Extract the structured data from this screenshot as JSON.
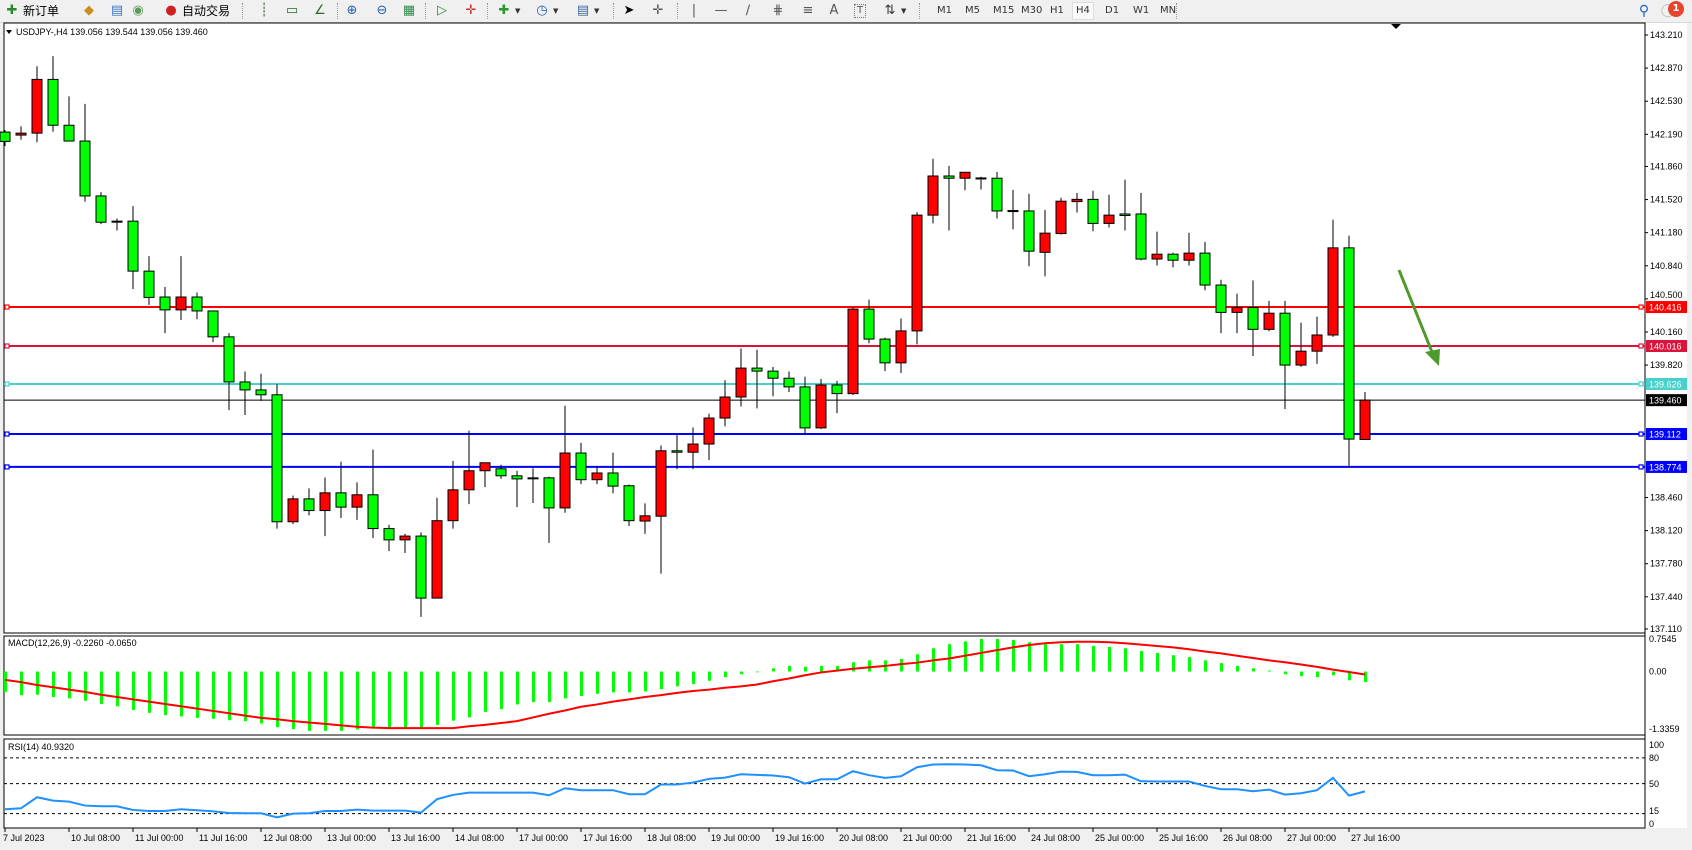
{
  "toolbar": {
    "new_order_label": "新订单",
    "auto_trading_label": "自动交易",
    "timeframes": [
      "M1",
      "M5",
      "M15",
      "M30",
      "H1",
      "H4",
      "D1",
      "W1",
      "MN"
    ],
    "active_timeframe": "H4",
    "notification_count": "1"
  },
  "chart": {
    "title": "USDJPY-,H4  139.056 139.544 139.056 139.460",
    "macd_label": "MACD(12,26,9) -0.2260 -0.0650",
    "rsi_label": "RSI(14) 40.9320",
    "colors": {
      "up_body": "#ff0000",
      "down_body": "#00ff00",
      "macd_hist": "#00ff00",
      "macd_signal": "#ff0000",
      "rsi_line": "#1e90ff",
      "arrow": "#4e9a2e"
    }
  },
  "chart_data": [
    {
      "type": "candlestick",
      "symbol": "USDJPY-",
      "timeframe": "H4",
      "ylim": [
        137.11,
        143.21
      ],
      "y_tick_labels": [
        "143.210",
        "142.870",
        "142.530",
        "142.190",
        "141.860",
        "141.520",
        "141.180",
        "140.840",
        "140.500",
        "140.160",
        "139.820",
        "138.460",
        "138.120",
        "137.780",
        "137.440",
        "137.110"
      ],
      "x_tick_labels": [
        "7 Jul 2023",
        "10 Jul 08:00",
        "11 Jul 00:00",
        "11 Jul 16:00",
        "12 Jul 08:00",
        "13 Jul 00:00",
        "13 Jul 16:00",
        "14 Jul 08:00",
        "17 Jul 00:00",
        "17 Jul 16:00",
        "18 Jul 08:00",
        "19 Jul 00:00",
        "19 Jul 16:00",
        "20 Jul 08:00",
        "21 Jul 00:00",
        "21 Jul 16:00",
        "24 Jul 08:00",
        "25 Jul 00:00",
        "25 Jul 16:00",
        "26 Jul 08:00",
        "27 Jul 00:00",
        "27 Jul 16:00"
      ],
      "ohlc": [
        [
          142.213,
          142.233,
          142.07,
          142.117
        ],
        [
          142.182,
          142.271,
          142.136,
          142.202
        ],
        [
          142.202,
          142.889,
          142.109,
          142.754
        ],
        [
          142.754,
          142.993,
          142.217,
          142.283
        ],
        [
          142.283,
          142.58,
          142.121,
          142.121
        ],
        [
          142.121,
          142.503,
          141.499,
          141.557
        ],
        [
          141.557,
          141.596,
          141.268,
          141.287
        ],
        [
          141.298,
          141.326,
          141.202,
          141.291
        ],
        [
          141.298,
          141.453,
          140.6,
          140.785
        ],
        [
          140.785,
          140.939,
          140.438,
          140.515
        ],
        [
          140.519,
          140.623,
          140.148,
          140.387
        ],
        [
          140.387,
          140.939,
          140.283,
          140.519
        ],
        [
          140.519,
          140.565,
          140.291,
          140.376
        ],
        [
          140.376,
          140.38,
          140.056,
          140.11
        ],
        [
          140.11,
          140.148,
          139.357,
          139.647
        ],
        [
          139.647,
          139.754,
          139.307,
          139.565
        ],
        [
          139.565,
          139.731,
          139.453,
          139.515
        ],
        [
          139.515,
          139.623,
          138.141,
          138.211
        ],
        [
          138.211,
          138.481,
          138.187,
          138.446
        ],
        [
          138.446,
          138.554,
          138.276,
          138.326
        ],
        [
          138.326,
          138.666,
          138.064,
          138.508
        ],
        [
          138.508,
          138.828,
          138.249,
          138.361
        ],
        [
          138.361,
          138.616,
          138.23,
          138.488
        ],
        [
          138.488,
          138.952,
          138.044,
          138.141
        ],
        [
          138.141,
          138.18,
          137.909,
          138.025
        ],
        [
          138.025,
          138.087,
          137.89,
          138.064
        ],
        [
          138.064,
          138.102,
          137.234,
          137.427
        ],
        [
          137.427,
          138.458,
          137.427,
          138.222
        ],
        [
          138.222,
          138.836,
          138.141,
          138.539
        ],
        [
          138.539,
          139.145,
          138.392,
          138.735
        ],
        [
          138.735,
          138.817,
          138.566,
          138.817
        ],
        [
          138.755,
          138.797,
          138.651,
          138.683
        ],
        [
          138.683,
          138.735,
          138.361,
          138.651
        ],
        [
          138.662,
          138.759,
          138.404,
          138.655
        ],
        [
          138.662,
          138.674,
          137.994,
          138.353
        ],
        [
          138.353,
          139.403,
          138.303,
          138.917
        ],
        [
          138.917,
          139.021,
          138.597,
          138.643
        ],
        [
          138.643,
          138.774,
          138.597,
          138.712
        ],
        [
          138.712,
          138.921,
          138.504,
          138.577
        ],
        [
          138.581,
          138.593,
          138.168,
          138.222
        ],
        [
          138.218,
          138.4,
          138.087,
          138.272
        ],
        [
          138.268,
          138.994,
          137.678,
          138.94
        ],
        [
          138.94,
          139.106,
          138.751,
          138.925
        ],
        [
          138.925,
          139.179,
          138.751,
          139.009
        ],
        [
          139.009,
          139.322,
          138.844,
          139.276
        ],
        [
          139.276,
          139.666,
          139.191,
          139.492
        ],
        [
          139.492,
          139.99,
          139.395,
          139.789
        ],
        [
          139.789,
          139.978,
          139.376,
          139.758
        ],
        [
          139.758,
          139.801,
          139.5,
          139.685
        ],
        [
          139.685,
          139.754,
          139.542,
          139.596
        ],
        [
          139.596,
          139.7,
          139.106,
          139.175
        ],
        [
          139.175,
          139.677,
          139.164,
          139.616
        ],
        [
          139.616,
          139.658,
          139.326,
          139.527
        ],
        [
          139.527,
          140.411,
          139.511,
          140.395
        ],
        [
          140.395,
          140.492,
          140.044,
          140.087
        ],
        [
          140.087,
          140.102,
          139.758,
          139.843
        ],
        [
          139.843,
          140.299,
          139.739,
          140.171
        ],
        [
          140.171,
          141.391,
          140.033,
          141.36
        ],
        [
          141.36,
          141.939,
          141.275,
          141.762
        ],
        [
          141.762,
          141.866,
          141.202,
          141.739
        ],
        [
          141.739,
          141.8,
          141.615,
          141.8
        ],
        [
          141.742,
          141.754,
          141.623,
          141.735
        ],
        [
          141.739,
          141.804,
          141.326,
          141.403
        ],
        [
          141.407,
          141.619,
          141.214,
          141.399
        ],
        [
          141.403,
          141.58,
          140.835,
          140.99
        ],
        [
          140.978,
          141.414,
          140.731,
          141.175
        ],
        [
          141.171,
          141.538,
          141.16,
          141.503
        ],
        [
          141.499,
          141.588,
          141.387,
          141.522
        ],
        [
          141.522,
          141.611,
          141.194,
          141.275
        ],
        [
          141.275,
          141.569,
          141.233,
          141.36
        ],
        [
          141.372,
          141.723,
          141.202,
          141.356
        ],
        [
          141.372,
          141.588,
          140.897,
          140.909
        ],
        [
          140.909,
          141.19,
          140.843,
          140.959
        ],
        [
          140.959,
          140.974,
          140.824,
          140.897
        ],
        [
          140.897,
          141.179,
          140.843,
          140.97
        ],
        [
          140.97,
          141.086,
          140.588,
          140.642
        ],
        [
          140.642,
          140.696,
          140.148,
          140.361
        ],
        [
          140.361,
          140.554,
          140.148,
          140.411
        ],
        [
          140.411,
          140.689,
          139.913,
          140.187
        ],
        [
          140.187,
          140.48,
          140.167,
          140.353
        ],
        [
          140.353,
          140.48,
          139.368,
          139.82
        ],
        [
          139.82,
          140.256,
          139.801,
          139.963
        ],
        [
          139.963,
          140.318,
          139.832,
          140.129
        ],
        [
          140.129,
          141.314,
          140.11,
          141.024
        ],
        [
          141.024,
          141.148,
          138.766,
          139.06
        ],
        [
          139.056,
          139.544,
          139.056,
          139.46
        ]
      ],
      "horizontal_lines": [
        {
          "price": "140.416",
          "color": "#ff0000"
        },
        {
          "price": "140.016",
          "color": "#dc143c"
        },
        {
          "price": "139.626",
          "color": "#48d1cc"
        },
        {
          "price": "139.460",
          "color": "#000000",
          "bid": true
        },
        {
          "price": "139.112",
          "color": "#0000ff"
        },
        {
          "price": "138.774",
          "color": "#0000ff"
        }
      ],
      "annotation": {
        "type": "arrow",
        "direction": "down-right",
        "color": "#4e9a2e"
      }
    },
    {
      "type": "bar+line",
      "name": "MACD(12,26,9)",
      "ylim": [
        -1.3359,
        0.7545
      ],
      "y_tick_labels": [
        "0.7545",
        "0.00",
        "-1.3359"
      ],
      "histogram": [
        -0.44,
        -0.51,
        -0.5,
        -0.55,
        -0.58,
        -0.63,
        -0.7,
        -0.75,
        -0.83,
        -0.89,
        -0.94,
        -0.97,
        -1.0,
        -1.02,
        -1.05,
        -1.07,
        -1.12,
        -1.2,
        -1.24,
        -1.28,
        -1.28,
        -1.28,
        -1.25,
        -1.23,
        -1.22,
        -1.22,
        -1.22,
        -1.15,
        -1.06,
        -0.99,
        -0.87,
        -0.81,
        -0.71,
        -0.66,
        -0.66,
        -0.58,
        -0.53,
        -0.48,
        -0.45,
        -0.45,
        -0.43,
        -0.38,
        -0.32,
        -0.27,
        -0.2,
        -0.12,
        -0.06,
        0.0,
        0.07,
        0.12,
        0.1,
        0.12,
        0.12,
        0.2,
        0.24,
        0.24,
        0.27,
        0.37,
        0.5,
        0.59,
        0.65,
        0.7,
        0.7,
        0.68,
        0.63,
        0.59,
        0.59,
        0.59,
        0.55,
        0.53,
        0.5,
        0.44,
        0.4,
        0.35,
        0.31,
        0.24,
        0.18,
        0.12,
        0.07,
        0.02,
        -0.06,
        -0.1,
        -0.12,
        -0.08,
        -0.19,
        -0.226
      ],
      "signal": [
        -0.18,
        -0.23,
        -0.29,
        -0.34,
        -0.39,
        -0.44,
        -0.5,
        -0.55,
        -0.6,
        -0.65,
        -0.7,
        -0.75,
        -0.8,
        -0.85,
        -0.9,
        -0.95,
        -1.0,
        -1.03,
        -1.07,
        -1.1,
        -1.13,
        -1.16,
        -1.19,
        -1.21,
        -1.22,
        -1.22,
        -1.22,
        -1.22,
        -1.22,
        -1.18,
        -1.15,
        -1.11,
        -1.07,
        -0.99,
        -0.91,
        -0.84,
        -0.76,
        -0.71,
        -0.65,
        -0.6,
        -0.55,
        -0.51,
        -0.46,
        -0.42,
        -0.39,
        -0.35,
        -0.32,
        -0.28,
        -0.21,
        -0.15,
        -0.08,
        -0.02,
        0.02,
        0.06,
        0.09,
        0.12,
        0.16,
        0.19,
        0.24,
        0.28,
        0.34,
        0.4,
        0.46,
        0.52,
        0.57,
        0.61,
        0.63,
        0.64,
        0.64,
        0.63,
        0.61,
        0.58,
        0.55,
        0.52,
        0.48,
        0.43,
        0.39,
        0.34,
        0.29,
        0.24,
        0.2,
        0.15,
        0.1,
        0.04,
        -0.01,
        -0.065
      ]
    },
    {
      "type": "line",
      "name": "RSI(14)",
      "ylim": [
        0,
        100
      ],
      "y_tick_labels": [
        "100",
        "80",
        "50",
        "15",
        "0"
      ],
      "levels": [
        80,
        50,
        15
      ],
      "values": [
        20.1,
        21.2,
        34.1,
        30.2,
        29.0,
        24.4,
        23.6,
        23.6,
        19.3,
        18.1,
        18.1,
        20.1,
        18.9,
        17.7,
        15.8,
        15.4,
        15.4,
        10.7,
        15.0,
        15.4,
        18.1,
        18.1,
        19.7,
        18.5,
        18.5,
        18.5,
        16.2,
        31.8,
        36.8,
        39.5,
        39.5,
        39.5,
        39.5,
        39.5,
        36.4,
        44.6,
        42.3,
        42.3,
        42.3,
        37.6,
        37.6,
        48.9,
        48.9,
        51.2,
        55.5,
        57.0,
        60.9,
        60.2,
        59.4,
        57.4,
        50.0,
        55.1,
        55.1,
        64.4,
        59.8,
        56.7,
        58.6,
        69.1,
        72.2,
        72.6,
        72.2,
        71.4,
        65.6,
        65.2,
        58.6,
        60.9,
        64.0,
        63.7,
        59.8,
        59.8,
        60.5,
        52.8,
        52.4,
        52.4,
        52.4,
        47.3,
        43.4,
        43.4,
        41.1,
        43.0,
        37.2,
        38.8,
        42.3,
        56.7,
        36.0,
        40.93
      ]
    }
  ]
}
